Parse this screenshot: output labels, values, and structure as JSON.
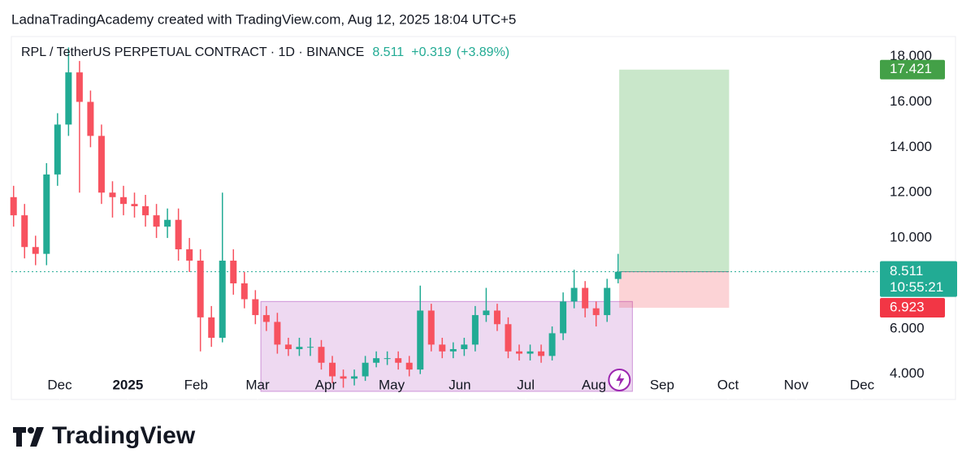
{
  "header": {
    "attribution": "LadnaTradingAcademy created with TradingView.com, Aug 12, 2025 18:04 UTC+5"
  },
  "chart_data": {
    "type": "candlestick",
    "symbol": "RPL / TetherUS PERPETUAL CONTRACT · 1D · BINANCE",
    "last": 8.511,
    "change": "+0.319",
    "change_pct": "(+3.89%)",
    "countdown": "10:55:21",
    "x": [
      0,
      5,
      10,
      15,
      20,
      25,
      30,
      35,
      40,
      45,
      50,
      55,
      60,
      65,
      70,
      75,
      80,
      85,
      90,
      95,
      100,
      105,
      110,
      115,
      120,
      125,
      130,
      135,
      140,
      145,
      150,
      155,
      160,
      165,
      170,
      175,
      180,
      185,
      190,
      195,
      200,
      205,
      210,
      215,
      220,
      225,
      230,
      235,
      240,
      245,
      250,
      255,
      260,
      265,
      270,
      275
    ],
    "open": [
      11.8,
      11.0,
      9.6,
      9.3,
      12.8,
      15.0,
      17.3,
      16.0,
      14.5,
      12.0,
      11.8,
      11.5,
      11.4,
      11.0,
      10.5,
      10.8,
      9.5,
      9.0,
      6.5,
      5.6,
      9.0,
      8.0,
      7.3,
      6.6,
      6.3,
      5.3,
      5.1,
      5.2,
      5.2,
      4.5,
      3.9,
      3.8,
      3.9,
      4.5,
      4.7,
      4.7,
      4.5,
      4.2,
      6.8,
      5.3,
      5.0,
      5.1,
      5.3,
      6.6,
      6.8,
      6.2,
      5.0,
      4.9,
      5.0,
      4.8,
      5.8,
      7.2,
      7.8,
      6.9,
      6.6,
      8.192
    ],
    "high": [
      12.3,
      11.5,
      10.1,
      13.3,
      15.5,
      18.4,
      17.8,
      16.5,
      15.0,
      12.5,
      12.3,
      12.0,
      11.9,
      11.5,
      11.3,
      11.3,
      10.0,
      9.5,
      7.0,
      12.0,
      9.5,
      8.5,
      7.7,
      7.0,
      6.7,
      5.6,
      5.6,
      5.6,
      5.5,
      4.8,
      4.2,
      4.2,
      4.8,
      5.0,
      5.0,
      5.0,
      4.8,
      7.9,
      7.1,
      5.6,
      5.4,
      5.6,
      7.0,
      7.8,
      7.1,
      6.5,
      5.3,
      5.3,
      5.3,
      6.1,
      7.6,
      8.6,
      8.1,
      7.2,
      8.2,
      9.3
    ],
    "low": [
      10.5,
      9.1,
      8.8,
      8.8,
      12.3,
      14.5,
      12.0,
      14.0,
      11.5,
      10.9,
      11.0,
      10.9,
      10.5,
      10.0,
      10.0,
      9.0,
      8.5,
      5.0,
      5.2,
      5.4,
      7.5,
      6.9,
      6.2,
      5.9,
      4.9,
      4.8,
      4.8,
      4.8,
      4.2,
      3.6,
      3.4,
      3.5,
      3.7,
      4.3,
      4.4,
      4.2,
      3.9,
      4.0,
      5.0,
      4.7,
      4.7,
      4.8,
      5.0,
      6.3,
      5.9,
      4.7,
      4.6,
      4.6,
      4.5,
      4.6,
      5.5,
      6.9,
      6.5,
      6.1,
      6.3,
      8.0
    ],
    "close": [
      11.0,
      9.6,
      9.3,
      12.8,
      15.0,
      17.3,
      16.0,
      14.5,
      12.0,
      11.8,
      11.5,
      11.4,
      11.0,
      10.5,
      10.8,
      9.5,
      9.0,
      6.5,
      5.6,
      9.0,
      8.0,
      7.3,
      6.6,
      6.3,
      5.3,
      5.1,
      5.2,
      5.2,
      4.5,
      3.9,
      3.8,
      3.9,
      4.5,
      4.7,
      4.7,
      4.5,
      4.2,
      6.8,
      5.3,
      5.0,
      5.1,
      5.3,
      6.6,
      6.8,
      6.2,
      5.0,
      4.9,
      5.0,
      4.8,
      5.8,
      7.2,
      7.8,
      6.9,
      6.6,
      7.8,
      8.511
    ],
    "up_color": "#22ab94",
    "down_color": "#f7525f",
    "xlim": [
      -1,
      393
    ],
    "ylim": [
      2.88,
      18.88
    ],
    "xticks": [
      {
        "value": 21,
        "label": "Dec"
      },
      {
        "value": 52,
        "label": "2025"
      },
      {
        "value": 83,
        "label": "Feb"
      },
      {
        "value": 111,
        "label": "Mar"
      },
      {
        "value": 142,
        "label": "Apr"
      },
      {
        "value": 172,
        "label": "May"
      },
      {
        "value": 203,
        "label": "Jun"
      },
      {
        "value": 233,
        "label": "Jul"
      },
      {
        "value": 264,
        "label": "Aug"
      },
      {
        "value": 295,
        "label": "Sep"
      },
      {
        "value": 325,
        "label": "Oct"
      },
      {
        "value": 356,
        "label": "Nov"
      },
      {
        "value": 386,
        "label": "Dec"
      }
    ],
    "yticks": [
      {
        "value": 4,
        "label": "4.000"
      },
      {
        "value": 6,
        "label": "6.000"
      },
      {
        "value": 10,
        "label": "10.000"
      },
      {
        "value": 12,
        "label": "12.000"
      },
      {
        "value": 14,
        "label": "14.000"
      },
      {
        "value": 16,
        "label": "16.000"
      },
      {
        "value": 18,
        "label": "18.000"
      }
    ],
    "range_box": {
      "x": [
        112.5,
        281.5
      ],
      "price": [
        3.24,
        7.2
      ]
    },
    "position": {
      "x": [
        275.5,
        325.5
      ],
      "entry": 8.511,
      "target": 17.421,
      "stop": 6.923
    }
  },
  "footer": {
    "brand": "TradingView"
  }
}
